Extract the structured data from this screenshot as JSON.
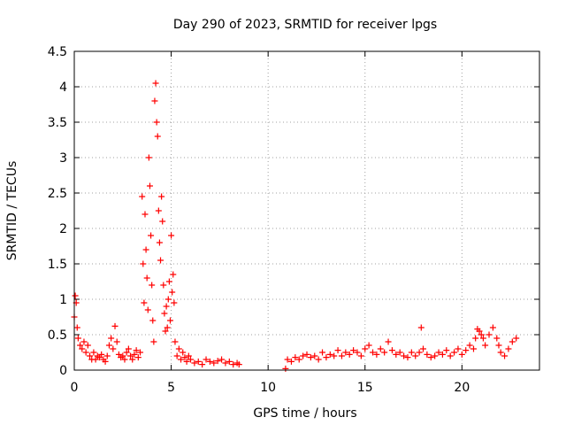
{
  "chart_data": {
    "type": "scatter",
    "title": "Day 290 of 2023, SRMTID for receiver lpgs",
    "xlabel": "GPS time / hours",
    "ylabel": "SRMTID / TECUs",
    "xlim": [
      0,
      24
    ],
    "ylim": [
      0,
      4.5
    ],
    "x_ticks": [
      0,
      5,
      10,
      15,
      20
    ],
    "y_ticks": [
      0,
      0.5,
      1,
      1.5,
      2,
      2.5,
      3,
      3.5,
      4,
      4.5
    ],
    "grid": true,
    "marker": "+",
    "marker_color": "#ff0000",
    "series": [
      {
        "name": "SRMTID",
        "x": [
          0.0,
          0.05,
          0.1,
          0.15,
          0.2,
          0.3,
          0.4,
          0.5,
          0.6,
          0.7,
          0.8,
          0.9,
          1.0,
          1.1,
          1.2,
          1.3,
          1.4,
          1.5,
          1.6,
          1.7,
          1.8,
          1.9,
          2.0,
          2.1,
          2.2,
          2.3,
          2.4,
          2.5,
          2.6,
          2.7,
          2.8,
          2.9,
          3.0,
          3.1,
          3.2,
          3.3,
          3.4,
          3.5,
          3.55,
          3.6,
          3.65,
          3.7,
          3.75,
          3.8,
          3.85,
          3.9,
          3.95,
          4.0,
          4.05,
          4.1,
          4.15,
          4.2,
          4.25,
          4.3,
          4.35,
          4.4,
          4.45,
          4.5,
          4.55,
          4.6,
          4.65,
          4.7,
          4.75,
          4.8,
          4.85,
          4.9,
          4.95,
          5.0,
          5.05,
          5.1,
          5.15,
          5.2,
          5.3,
          5.4,
          5.5,
          5.6,
          5.7,
          5.8,
          5.9,
          6.0,
          6.2,
          6.4,
          6.6,
          6.8,
          7.0,
          7.2,
          7.4,
          7.6,
          7.8,
          8.0,
          8.2,
          8.4,
          8.5,
          10.9,
          11.0,
          11.2,
          11.4,
          11.6,
          11.8,
          12.0,
          12.2,
          12.4,
          12.6,
          12.8,
          13.0,
          13.2,
          13.4,
          13.6,
          13.8,
          14.0,
          14.2,
          14.4,
          14.6,
          14.8,
          15.0,
          15.2,
          15.4,
          15.6,
          15.8,
          16.0,
          16.2,
          16.4,
          16.6,
          16.8,
          17.0,
          17.2,
          17.4,
          17.6,
          17.8,
          17.9,
          18.0,
          18.2,
          18.4,
          18.6,
          18.8,
          19.0,
          19.2,
          19.4,
          19.6,
          19.8,
          20.0,
          20.2,
          20.4,
          20.6,
          20.7,
          20.8,
          20.9,
          21.0,
          21.1,
          21.2,
          21.4,
          21.6,
          21.8,
          21.9,
          22.0,
          22.2,
          22.4,
          22.6,
          22.8
        ],
        "y": [
          0.75,
          1.05,
          0.95,
          0.6,
          0.45,
          0.35,
          0.3,
          0.4,
          0.25,
          0.35,
          0.2,
          0.15,
          0.25,
          0.15,
          0.2,
          0.18,
          0.22,
          0.15,
          0.12,
          0.2,
          0.35,
          0.45,
          0.3,
          0.62,
          0.4,
          0.22,
          0.18,
          0.2,
          0.15,
          0.25,
          0.3,
          0.2,
          0.15,
          0.22,
          0.28,
          0.18,
          0.25,
          2.45,
          1.5,
          0.95,
          2.2,
          1.7,
          1.3,
          0.85,
          3.0,
          2.6,
          1.9,
          1.2,
          0.7,
          0.4,
          3.8,
          4.05,
          3.5,
          3.3,
          2.25,
          1.8,
          1.55,
          2.45,
          2.1,
          1.2,
          0.8,
          0.55,
          0.9,
          0.6,
          1.0,
          1.25,
          0.7,
          1.9,
          1.1,
          1.35,
          0.95,
          0.4,
          0.2,
          0.3,
          0.15,
          0.25,
          0.18,
          0.12,
          0.2,
          0.15,
          0.1,
          0.12,
          0.08,
          0.15,
          0.12,
          0.1,
          0.13,
          0.15,
          0.1,
          0.12,
          0.08,
          0.1,
          0.08,
          0.02,
          0.15,
          0.12,
          0.18,
          0.15,
          0.2,
          0.22,
          0.18,
          0.2,
          0.15,
          0.25,
          0.18,
          0.22,
          0.2,
          0.28,
          0.2,
          0.25,
          0.22,
          0.28,
          0.25,
          0.2,
          0.3,
          0.35,
          0.25,
          0.22,
          0.3,
          0.25,
          0.4,
          0.28,
          0.22,
          0.25,
          0.2,
          0.18,
          0.25,
          0.2,
          0.25,
          0.6,
          0.3,
          0.22,
          0.18,
          0.2,
          0.25,
          0.22,
          0.28,
          0.2,
          0.25,
          0.3,
          0.22,
          0.28,
          0.35,
          0.3,
          0.45,
          0.58,
          0.55,
          0.5,
          0.45,
          0.35,
          0.5,
          0.6,
          0.45,
          0.35,
          0.25,
          0.2,
          0.3,
          0.4,
          0.45
        ]
      }
    ]
  }
}
